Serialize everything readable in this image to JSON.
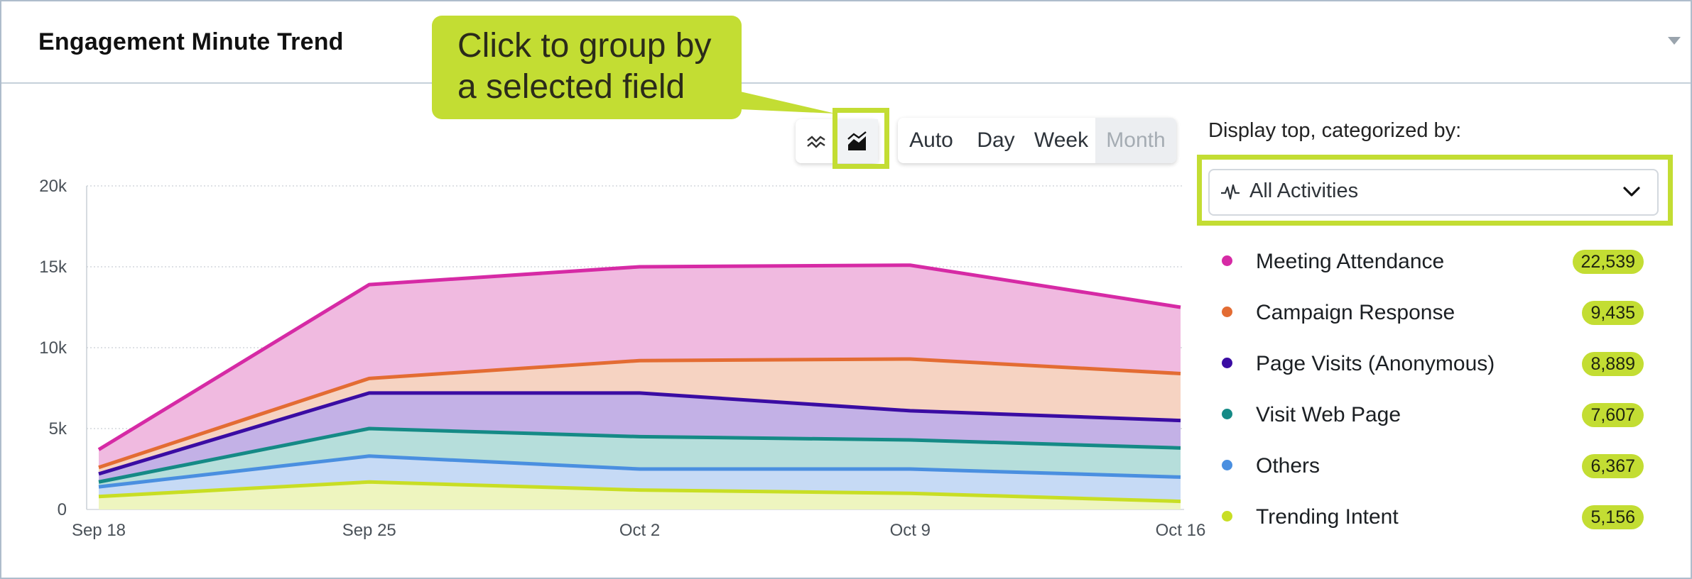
{
  "header": {
    "title": "Engagement Minute Trend"
  },
  "callout": {
    "line1": "Click to group by",
    "line2": "a selected field"
  },
  "view_toggle": {
    "line_icon": "line-chart-icon",
    "area_icon": "area-chart-icon",
    "selected": "area"
  },
  "period": {
    "options": [
      "Auto",
      "Day",
      "Week",
      "Month"
    ],
    "selected": "Month"
  },
  "panel": {
    "label": "Display top, categorized by:",
    "dropdown_value": "All Activities",
    "dropdown_icon": "activity-icon"
  },
  "colors": {
    "accent_highlight": "#c3dd33"
  },
  "legend": [
    {
      "label": "Meeting Attendance",
      "value": "22,539",
      "color": "#d62aa5"
    },
    {
      "label": "Campaign Response",
      "value": "9,435",
      "color": "#e36c33"
    },
    {
      "label": "Page Visits (Anonymous)",
      "value": "8,889",
      "color": "#3a0ca3"
    },
    {
      "label": "Visit Web Page",
      "value": "7,607",
      "color": "#158a86"
    },
    {
      "label": "Others",
      "value": "6,367",
      "color": "#4a8fe0"
    },
    {
      "label": "Trending Intent",
      "value": "5,156",
      "color": "#c8de24"
    }
  ],
  "chart_data": {
    "type": "area",
    "categories": [
      "Sep 18",
      "Sep 25",
      "Oct 2",
      "Oct 9",
      "Oct 16"
    ],
    "ylim": [
      0,
      20000
    ],
    "yticks": [
      0,
      5000,
      10000,
      15000,
      20000
    ],
    "ytick_labels": [
      "0",
      "5k",
      "10k",
      "15k",
      "20k"
    ],
    "grid": true,
    "legend_position": "right",
    "series": [
      {
        "name": "Meeting Attendance",
        "values": [
          3700,
          13900,
          15000,
          15100,
          12500
        ],
        "color": "#d62aa5",
        "fill": "#f0bae0"
      },
      {
        "name": "Campaign Response",
        "values": [
          2600,
          8100,
          9200,
          9300,
          8400
        ],
        "color": "#e36c33",
        "fill": "#f6d3c2"
      },
      {
        "name": "Page Visits (Anonymous)",
        "values": [
          2200,
          7200,
          7200,
          6100,
          5500
        ],
        "color": "#3a0ca3",
        "fill": "#c3b1e6"
      },
      {
        "name": "Visit Web Page",
        "values": [
          1700,
          5000,
          4500,
          4300,
          3800
        ],
        "color": "#158a86",
        "fill": "#b6dedb"
      },
      {
        "name": "Others",
        "values": [
          1400,
          3300,
          2500,
          2500,
          2000
        ],
        "color": "#4a8fe0",
        "fill": "#c6daf5"
      },
      {
        "name": "Trending Intent",
        "values": [
          800,
          1700,
          1200,
          1000,
          500
        ],
        "color": "#c8de24",
        "fill": "#eef5bf"
      }
    ]
  }
}
